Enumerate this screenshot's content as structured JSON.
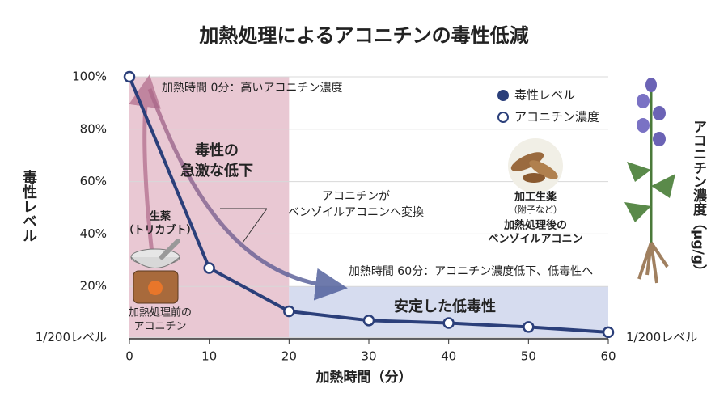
{
  "chart_data": {
    "type": "line",
    "title": "加熱処理によるアコニチンの毒性低減",
    "x_label": "加熱時間（分）",
    "y_label": "毒性レベル",
    "y2_label": "アコニチン濃度（μg/g）",
    "x": [
      0,
      10,
      20,
      30,
      40,
      50,
      60
    ],
    "series": [
      {
        "name": "毒性レベル",
        "color": "#2b3f7a",
        "values": [
          100,
          27,
          10.5,
          7,
          6,
          4.5,
          2.5
        ]
      },
      {
        "name": "アコニチン濃度",
        "color": "#2b3f7a",
        "values": [
          100,
          27,
          10.5,
          7,
          6,
          4.5,
          2.5
        ]
      }
    ],
    "xlim": [
      0,
      60
    ],
    "xticks": [
      0,
      10,
      20,
      30,
      40,
      50,
      60
    ],
    "ylim": [
      0,
      100
    ],
    "yticks": [
      {
        "value": 0.5,
        "label": "1/200レベル"
      },
      {
        "value": 20,
        "label": "20%"
      },
      {
        "value": 40,
        "label": "40%"
      },
      {
        "value": 60,
        "label": "60%"
      },
      {
        "value": 80,
        "label": "80%"
      },
      {
        "value": 100,
        "label": "100%"
      }
    ],
    "y2lim": [
      0,
      100
    ],
    "y2ticks": [
      {
        "value": 0.5,
        "label": "1/200レベル"
      }
    ],
    "grid": true,
    "legend": "upper right",
    "regions": [
      {
        "x": [
          0,
          20
        ],
        "y": [
          0,
          100
        ],
        "color": "#e9c8d3"
      },
      {
        "x": [
          20,
          60
        ],
        "y": [
          0,
          20
        ],
        "color": "#d6dcef"
      }
    ],
    "annotations": [
      "加熱時間 0分：高いアコニチン濃度",
      "毒性の",
      "急激な低下",
      "アコニチンが",
      "ベンゾイルアコニンへ変換",
      "生薬",
      "（トリカブト）",
      "加熱処理前の",
      "アコニチン",
      "加工生薬",
      "（附子など）",
      "加熱処理後の",
      "ベンゾイルアコニン",
      "加熱時間 60分：アコニチン濃度低下、低毒性へ",
      "安定した低毒性"
    ]
  }
}
